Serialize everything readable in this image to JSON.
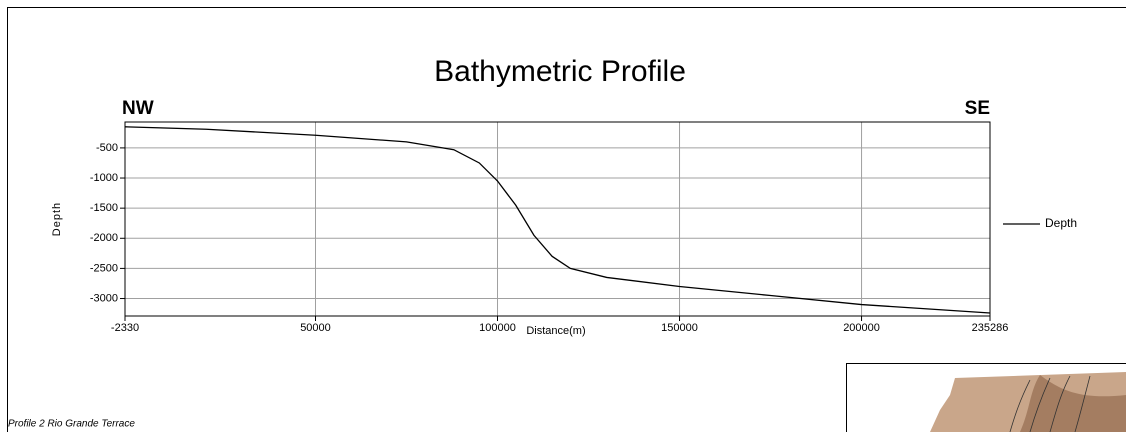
{
  "chart_data": {
    "type": "line",
    "title": "Bathymetric Profile",
    "left_label": "NW",
    "right_label": "SE",
    "x_label": "Distance(m)",
    "y_label": "Depth",
    "footer": "Profile 2  Rio Grande Terrace",
    "x": [
      -2330,
      20000,
      50000,
      75000,
      88000,
      95000,
      100000,
      105000,
      110000,
      115000,
      120000,
      130000,
      150000,
      175000,
      200000,
      235286
    ],
    "series": [
      {
        "name": "Depth",
        "color": "#000000",
        "values": [
          -150,
          -190,
          -290,
          -400,
          -530,
          -750,
          -1050,
          -1450,
          -1950,
          -2300,
          -2500,
          -2650,
          -2800,
          -2950,
          -3100,
          -3240
        ]
      }
    ],
    "xlim": [
      -2330,
      235286
    ],
    "xticks": [
      -2330,
      50000,
      100000,
      150000,
      200000,
      235286
    ],
    "ylim": [
      -3290,
      -70
    ],
    "yticks": [
      -500,
      -1000,
      -1500,
      -2000,
      -2500,
      -3000
    ],
    "grid": true,
    "legend": "right"
  }
}
